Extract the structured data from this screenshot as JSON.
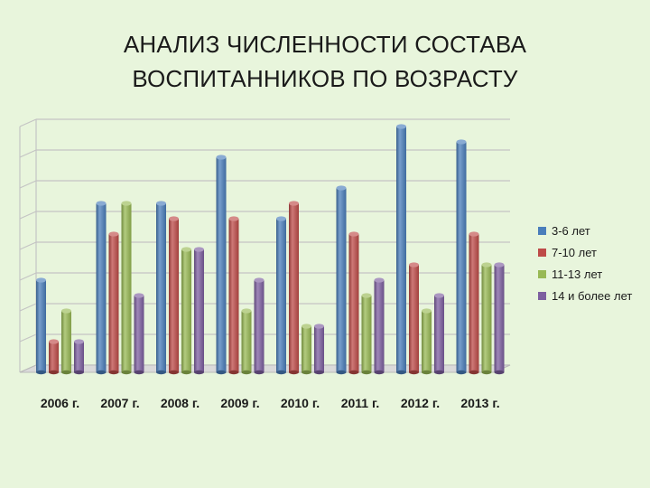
{
  "slide": {
    "title_line1": "АНАЛИЗ ЧИСЛЕННОСТИ СОСТАВА",
    "title_line2": "ВОСПИТАННИКОВ ПО ВОЗРАСТУ"
  },
  "chart_data": {
    "type": "bar",
    "title": "АНАЛИЗ ЧИСЛЕННОСТИ СОСТАВА ВОСПИТАННИКОВ ПО ВОЗРАСТУ",
    "categories": [
      "2006 г.",
      "2007 г.",
      "2008 г.",
      "2009 г.",
      "2010 г.",
      "2011 г.",
      "2012 г.",
      "2013 г."
    ],
    "series": [
      {
        "name": "3-6 лет",
        "color": "#4a7ebb",
        "values": [
          3,
          5.5,
          5.5,
          7,
          5,
          6,
          8,
          7.5
        ]
      },
      {
        "name": "7-10 лет",
        "color": "#be4b48",
        "values": [
          1,
          4.5,
          5,
          5,
          5.5,
          4.5,
          3.5,
          4.5
        ]
      },
      {
        "name": "11-13 лет",
        "color": "#98b954",
        "values": [
          2,
          5.5,
          4,
          2,
          1.5,
          2.5,
          2,
          3.5
        ]
      },
      {
        "name": "14 и более лет",
        "color": "#7d5fa0",
        "values": [
          1,
          2.5,
          4,
          3,
          1.5,
          3,
          2.5,
          3.5
        ]
      }
    ],
    "ylim": [
      0,
      8
    ],
    "grid": true,
    "legend_position": "right",
    "xlabel": "",
    "ylabel": ""
  }
}
